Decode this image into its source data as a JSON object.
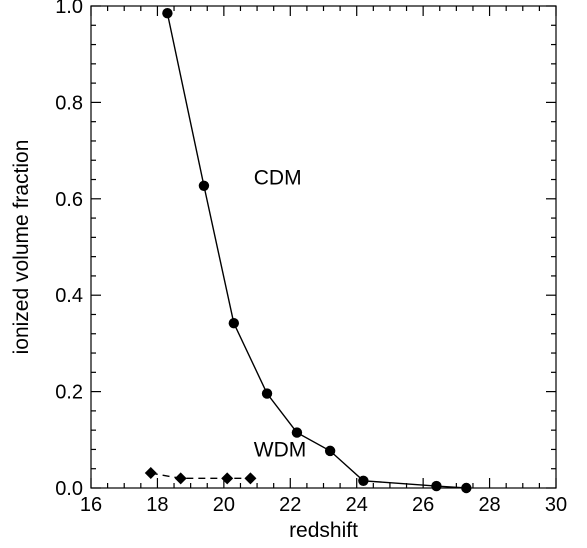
{
  "chart_data": {
    "type": "line",
    "title": "",
    "xlabel": "redshift",
    "ylabel": "ionized volume fraction",
    "xlim": [
      16,
      30
    ],
    "ylim": [
      0.0,
      1.0
    ],
    "x_ticks": [
      16,
      18,
      20,
      22,
      24,
      26,
      28,
      30
    ],
    "x_tick_labels": [
      "16",
      "18",
      "20",
      "22",
      "24",
      "26",
      "28",
      "30"
    ],
    "x_minor_step": 0.5,
    "y_ticks": [
      0.0,
      0.2,
      0.4,
      0.6,
      0.8,
      1.0
    ],
    "y_tick_labels": [
      "0.0",
      "0.2",
      "0.4",
      "0.6",
      "0.8",
      "1.0"
    ],
    "y_minor_step": 0.04,
    "grid": false,
    "series": [
      {
        "name": "CDM",
        "marker": "circle",
        "line_style": "solid",
        "color": "#000000",
        "x": [
          18.3,
          19.4,
          20.3,
          21.3,
          22.2,
          23.2,
          24.2,
          26.4,
          27.3
        ],
        "y": [
          0.985,
          0.627,
          0.342,
          0.196,
          0.115,
          0.077,
          0.015,
          0.004,
          0.0
        ]
      },
      {
        "name": "WDM",
        "marker": "diamond",
        "line_style": "dashed",
        "color": "#000000",
        "x": [
          17.8,
          18.7,
          20.1,
          20.8
        ],
        "y": [
          0.031,
          0.02,
          0.02,
          0.02
        ]
      }
    ],
    "annotations": [
      {
        "text": "CDM",
        "x": 20.9,
        "y": 0.63
      },
      {
        "text": "WDM",
        "x": 20.9,
        "y": 0.065
      }
    ]
  }
}
